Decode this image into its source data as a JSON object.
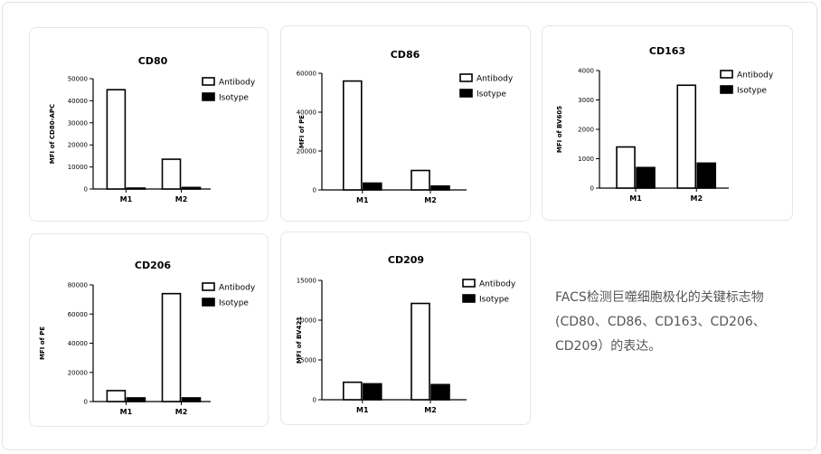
{
  "caption": {
    "line1": "FACS检测巨噬细胞极化的关键标志物",
    "line2": "(CD80、CD86、CD163、CD206、",
    "line3": "CD209）的表达。"
  },
  "colors": {
    "antibody_fill": "#ffffff",
    "isotype_fill": "#000000",
    "axis": "#000000",
    "card_border": "#e6e6e6"
  },
  "chart_data": [
    {
      "type": "bar",
      "title": "CD80",
      "ylabel": "MFI of CD80-APC",
      "categories": [
        "M1",
        "M2"
      ],
      "ylim": [
        0,
        50000
      ],
      "yticks": [
        "0",
        "10000",
        "20000",
        "30000",
        "40000",
        "50000"
      ],
      "series": [
        {
          "name": "Antibody",
          "values": [
            45000,
            13500
          ]
        },
        {
          "name": "Isotype",
          "values": [
            300,
            700
          ]
        }
      ]
    },
    {
      "type": "bar",
      "title": "CD86",
      "ylabel": "MFI of PE",
      "categories": [
        "M1",
        "M2"
      ],
      "ylim": [
        0,
        60000
      ],
      "yticks": [
        "0",
        "20000",
        "40000",
        "60000"
      ],
      "series": [
        {
          "name": "Antibody",
          "values": [
            56000,
            10000
          ]
        },
        {
          "name": "Isotype",
          "values": [
            3500,
            2000
          ]
        }
      ]
    },
    {
      "type": "bar",
      "title": "CD163",
      "ylabel": "MFI of BV605",
      "categories": [
        "M1",
        "M2"
      ],
      "ylim": [
        0,
        4000
      ],
      "yticks": [
        "0",
        "1000",
        "2000",
        "3000",
        "4000"
      ],
      "series": [
        {
          "name": "Antibody",
          "values": [
            1400,
            3500
          ]
        },
        {
          "name": "Isotype",
          "values": [
            700,
            850
          ]
        }
      ]
    },
    {
      "type": "bar",
      "title": "CD206",
      "ylabel": "MFI of PE",
      "categories": [
        "M1",
        "M2"
      ],
      "ylim": [
        0,
        80000
      ],
      "yticks": [
        "0",
        "20000",
        "40000",
        "60000",
        "80000"
      ],
      "series": [
        {
          "name": "Antibody",
          "values": [
            7500,
            74000
          ]
        },
        {
          "name": "Isotype",
          "values": [
            2500,
            2500
          ]
        }
      ]
    },
    {
      "type": "bar",
      "title": "CD209",
      "ylabel": "MFI of BV421",
      "categories": [
        "M1",
        "M2"
      ],
      "ylim": [
        0,
        15000
      ],
      "yticks": [
        "0",
        "5000",
        "10000",
        "15000"
      ],
      "series": [
        {
          "name": "Antibody",
          "values": [
            2200,
            12100
          ]
        },
        {
          "name": "Isotype",
          "values": [
            2000,
            1900
          ]
        }
      ]
    }
  ]
}
